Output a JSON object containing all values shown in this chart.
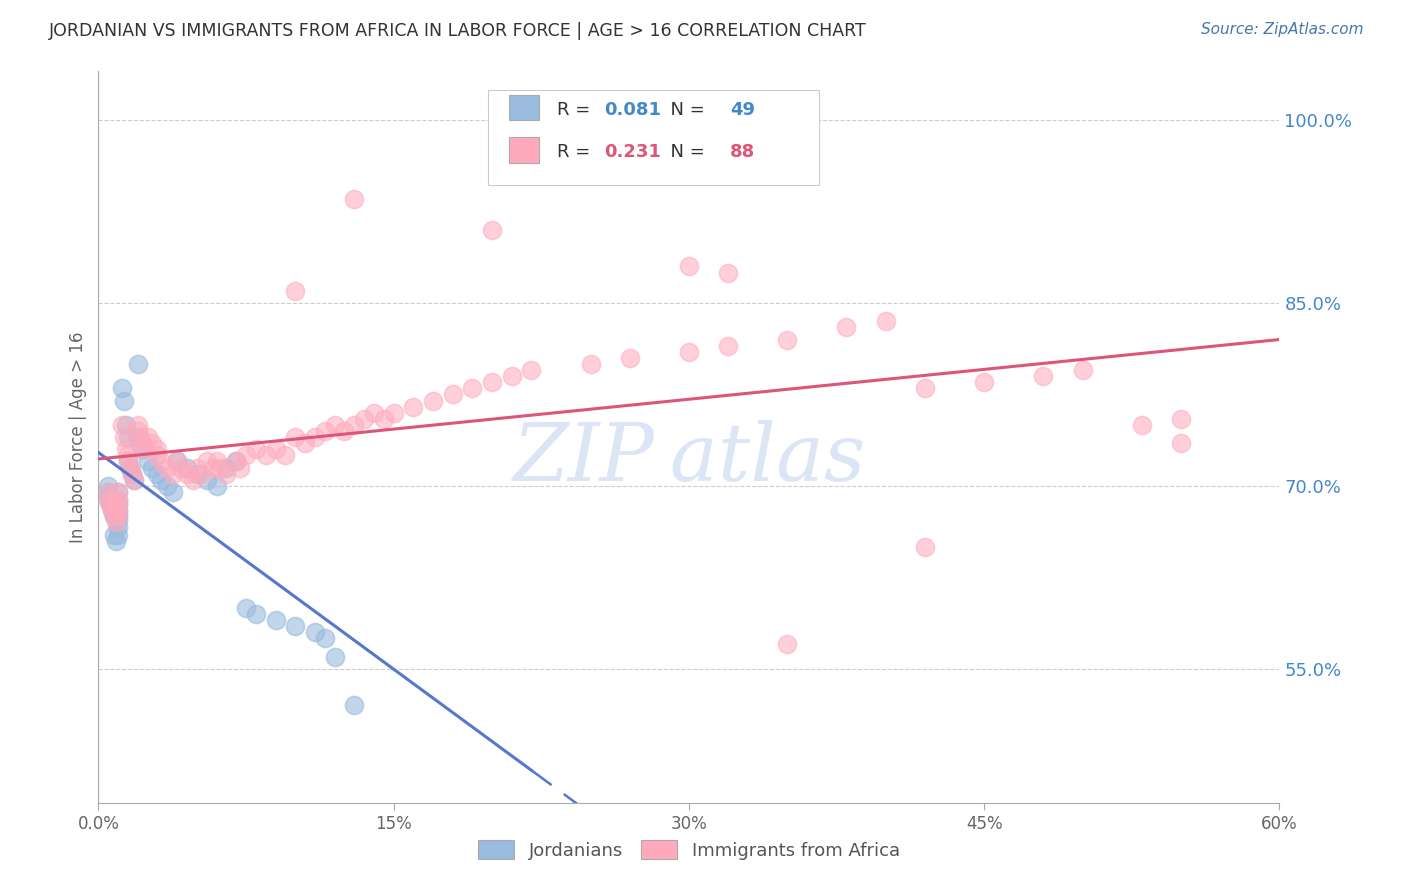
{
  "title": "JORDANIAN VS IMMIGRANTS FROM AFRICA IN LABOR FORCE | AGE > 16 CORRELATION CHART",
  "source": "Source: ZipAtlas.com",
  "ylabel": "In Labor Force | Age > 16",
  "xlim": [
    0.0,
    0.6
  ],
  "ylim": [
    0.44,
    1.04
  ],
  "yticks": [
    0.55,
    0.7,
    0.85,
    1.0
  ],
  "ytick_labels": [
    "55.0%",
    "70.0%",
    "85.0%",
    "100.0%"
  ],
  "xticks": [
    0.0,
    0.15,
    0.3,
    0.45,
    0.6
  ],
  "xtick_labels": [
    "0.0%",
    "15%",
    "30%",
    "45%",
    "60%"
  ],
  "legend_label1": "Jordanians",
  "legend_label2": "Immigrants from Africa",
  "R1": 0.081,
  "N1": 49,
  "R2": 0.231,
  "N2": 88,
  "color_blue": "#99BBDD",
  "color_pink": "#FFAABC",
  "color_blue_line": "#5577CC",
  "color_pink_line": "#DD5577",
  "color_source": "#4477AA",
  "color_title": "#333333",
  "color_ytick": "#4488CC",
  "watermark_color": "#BBCCEE",
  "grid_color": "#CCCCCC",
  "background_color": "#FFFFFF",
  "jordan_x": [
    0.005,
    0.005,
    0.005,
    0.006,
    0.007,
    0.008,
    0.008,
    0.009,
    0.01,
    0.01,
    0.01,
    0.01,
    0.01,
    0.01,
    0.01,
    0.01,
    0.012,
    0.013,
    0.014,
    0.015,
    0.015,
    0.016,
    0.017,
    0.018,
    0.02,
    0.02,
    0.021,
    0.022,
    0.025,
    0.027,
    0.03,
    0.032,
    0.035,
    0.038,
    0.04,
    0.045,
    0.05,
    0.055,
    0.06,
    0.065,
    0.07,
    0.075,
    0.08,
    0.09,
    0.1,
    0.11,
    0.115,
    0.12,
    0.13
  ],
  "jordan_y": [
    0.7,
    0.695,
    0.69,
    0.685,
    0.68,
    0.675,
    0.66,
    0.655,
    0.695,
    0.688,
    0.685,
    0.68,
    0.676,
    0.672,
    0.666,
    0.66,
    0.78,
    0.77,
    0.75,
    0.74,
    0.72,
    0.715,
    0.71,
    0.705,
    0.8,
    0.74,
    0.735,
    0.73,
    0.72,
    0.715,
    0.71,
    0.705,
    0.7,
    0.695,
    0.72,
    0.715,
    0.71,
    0.705,
    0.7,
    0.715,
    0.72,
    0.6,
    0.595,
    0.59,
    0.585,
    0.58,
    0.575,
    0.56,
    0.52
  ],
  "africa_x": [
    0.005,
    0.005,
    0.006,
    0.007,
    0.008,
    0.009,
    0.01,
    0.01,
    0.01,
    0.01,
    0.01,
    0.012,
    0.013,
    0.014,
    0.015,
    0.015,
    0.016,
    0.017,
    0.018,
    0.02,
    0.02,
    0.021,
    0.022,
    0.023,
    0.025,
    0.027,
    0.03,
    0.03,
    0.032,
    0.035,
    0.038,
    0.04,
    0.042,
    0.045,
    0.048,
    0.05,
    0.052,
    0.055,
    0.058,
    0.06,
    0.062,
    0.065,
    0.07,
    0.072,
    0.075,
    0.08,
    0.085,
    0.09,
    0.095,
    0.1,
    0.105,
    0.11,
    0.115,
    0.12,
    0.125,
    0.13,
    0.135,
    0.14,
    0.145,
    0.15,
    0.16,
    0.17,
    0.18,
    0.19,
    0.2,
    0.21,
    0.22,
    0.25,
    0.27,
    0.3,
    0.32,
    0.35,
    0.38,
    0.4,
    0.42,
    0.45,
    0.48,
    0.5,
    0.53,
    0.55,
    0.13,
    0.2,
    0.3,
    0.32,
    0.42,
    0.1,
    0.35,
    0.55
  ],
  "africa_y": [
    0.695,
    0.688,
    0.685,
    0.68,
    0.675,
    0.67,
    0.695,
    0.688,
    0.685,
    0.68,
    0.676,
    0.75,
    0.74,
    0.73,
    0.725,
    0.72,
    0.715,
    0.71,
    0.705,
    0.75,
    0.745,
    0.74,
    0.735,
    0.73,
    0.74,
    0.735,
    0.73,
    0.725,
    0.72,
    0.715,
    0.71,
    0.72,
    0.715,
    0.71,
    0.705,
    0.715,
    0.71,
    0.72,
    0.715,
    0.72,
    0.715,
    0.71,
    0.72,
    0.715,
    0.725,
    0.73,
    0.725,
    0.73,
    0.725,
    0.74,
    0.735,
    0.74,
    0.745,
    0.75,
    0.745,
    0.75,
    0.755,
    0.76,
    0.755,
    0.76,
    0.765,
    0.77,
    0.775,
    0.78,
    0.785,
    0.79,
    0.795,
    0.8,
    0.805,
    0.81,
    0.815,
    0.82,
    0.83,
    0.835,
    0.78,
    0.785,
    0.79,
    0.795,
    0.75,
    0.755,
    0.935,
    0.91,
    0.88,
    0.875,
    0.65,
    0.86,
    0.57,
    0.735
  ]
}
